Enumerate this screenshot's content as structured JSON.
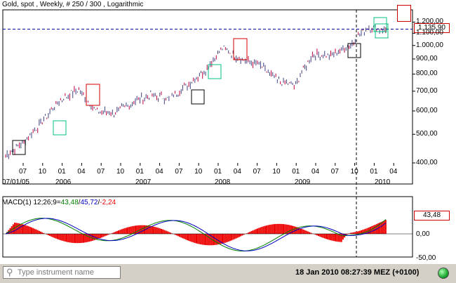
{
  "chart": {
    "title": "Gold, spot , Weekly, # 250 / 300 , Logarithmic",
    "current_price": "1.135,90",
    "right_ticks": [
      "1.200,00",
      "1.100,00",
      "1.000,00",
      "900,00",
      "800,00",
      "700,00",
      "600,00",
      "500,00",
      "400,00"
    ],
    "month_ticks": [
      "07",
      "10",
      "01",
      "04",
      "07",
      "10",
      "01",
      "04",
      "07",
      "10",
      "01",
      "04",
      "07",
      "10",
      "01",
      "04",
      "07",
      "10",
      "01",
      "04",
      "07",
      "10",
      "01",
      "04"
    ],
    "year_labels": [
      "07/01/05",
      "2006",
      "2007",
      "2008",
      "2009",
      "2010"
    ]
  },
  "chart_data": {
    "type": "ohlc",
    "scale": "logarithmic",
    "ylim": [
      400,
      1250
    ],
    "x": [
      "2005-07",
      "2005-10",
      "2006-01",
      "2006-04",
      "2006-05",
      "2006-06",
      "2006-10",
      "2007-01",
      "2007-04",
      "2007-07",
      "2007-09",
      "2007-12",
      "2008-03",
      "2008-06",
      "2008-08",
      "2008-10",
      "2008-11",
      "2009-02",
      "2009-05",
      "2009-09",
      "2009-12",
      "2010-01"
    ],
    "close": [
      425,
      470,
      550,
      650,
      710,
      600,
      590,
      640,
      680,
      660,
      730,
      820,
      980,
      900,
      860,
      760,
      730,
      940,
      920,
      1000,
      1150,
      1136
    ]
  },
  "macd": {
    "title_prefix": "MACD(1) 12;26;9=",
    "value": "43,48",
    "sep1": "/",
    "signal": "45,72",
    "sep2": "/",
    "hist": "-2,24",
    "right_ticks": [
      "0,00",
      "-50,00"
    ],
    "current": "43,48",
    "colors": {
      "macd": "#008000",
      "signal": "#0000c0",
      "hist": "#ee0000"
    }
  },
  "statusbar": {
    "search_placeholder": "Type instrument name",
    "search_icon": "magnifier-icon",
    "datetime": "18 Jan 2010 08:27:39  MEZ (+0100)",
    "status_icon": "connection-led-icon"
  }
}
